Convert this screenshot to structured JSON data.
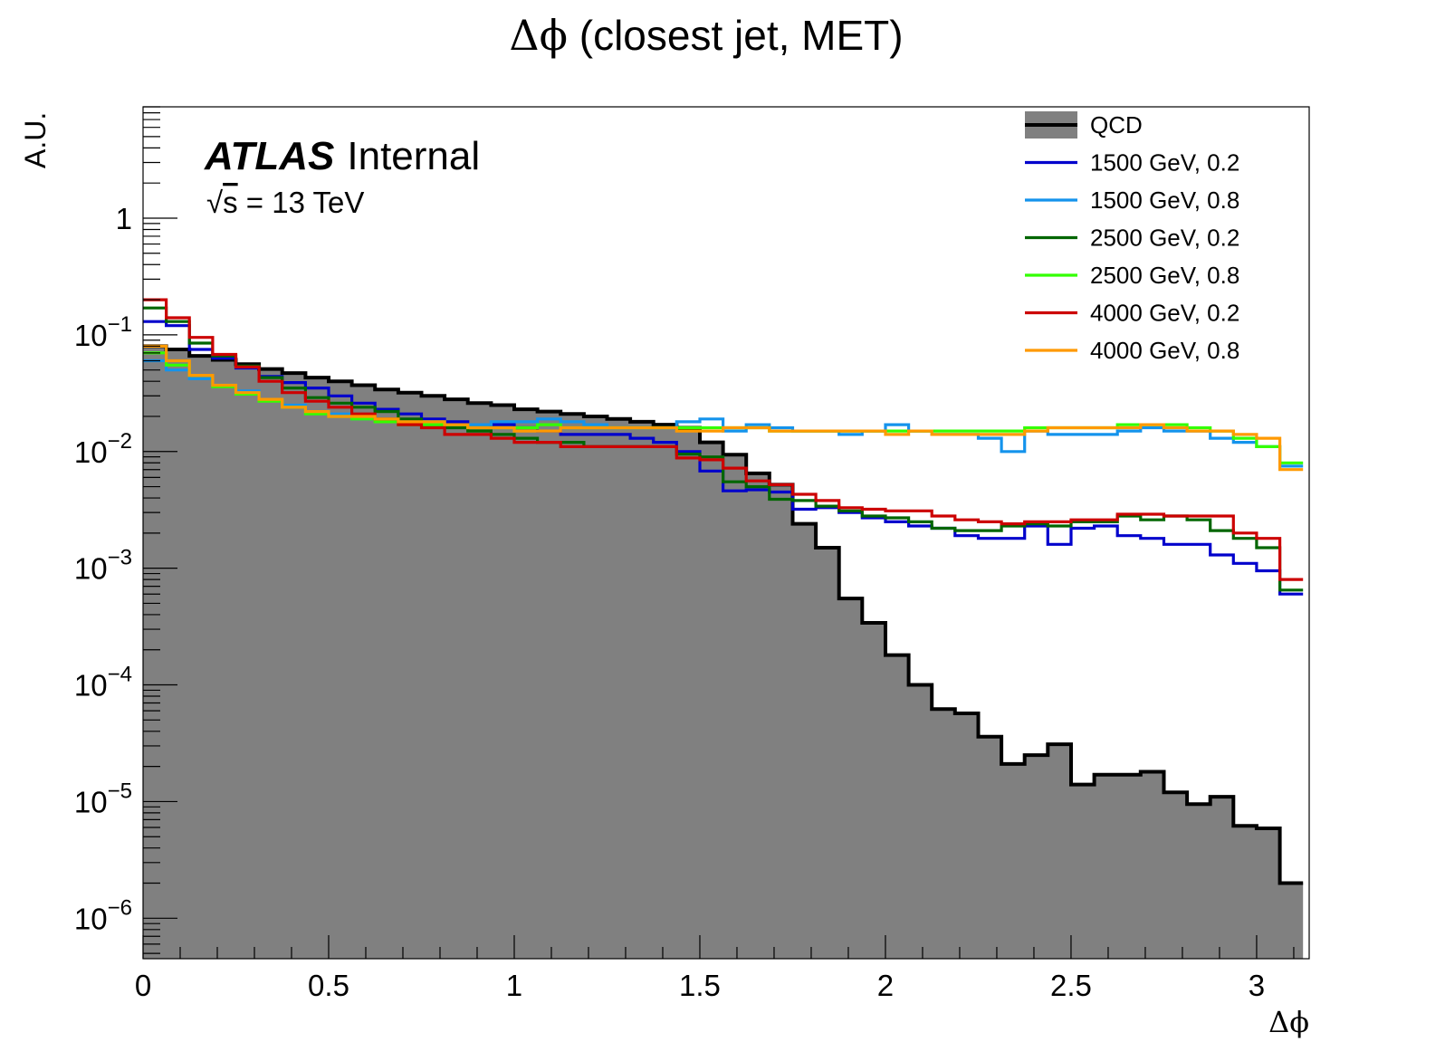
{
  "chart_data": {
    "type": "histogram",
    "title_parts": [
      "Δϕ",
      " (closest jet, MET)"
    ],
    "xlabel": "Δϕ",
    "ylabel": "A.U.",
    "xlim": [
      0,
      3.1416
    ],
    "ylim": [
      4.5e-07,
      9.0
    ],
    "yscale": "log",
    "grid": false,
    "legend_position": "top-right",
    "x_ticks": [
      {
        "v": 0,
        "t": "0"
      },
      {
        "v": 0.5,
        "t": "0.5"
      },
      {
        "v": 1,
        "t": "1"
      },
      {
        "v": 1.5,
        "t": "1.5"
      },
      {
        "v": 2,
        "t": "2"
      },
      {
        "v": 2.5,
        "t": "2.5"
      },
      {
        "v": 3,
        "t": "3"
      }
    ],
    "y_ticks": [
      {
        "v": 1,
        "b": "1",
        "e": ""
      },
      {
        "v": 0.1,
        "b": "10",
        "e": "−1"
      },
      {
        "v": 0.01,
        "b": "10",
        "e": "−2"
      },
      {
        "v": 0.001,
        "b": "10",
        "e": "−3"
      },
      {
        "v": 0.0001,
        "b": "10",
        "e": "−4"
      },
      {
        "v": 1e-05,
        "b": "10",
        "e": "−5"
      },
      {
        "v": 1e-06,
        "b": "10",
        "e": "−6"
      }
    ],
    "annotations": {
      "experiment": "ATLAS",
      "status": "Internal",
      "energy_sqrt": "√",
      "energy_s": "s",
      "energy_value": " = 13 TeV"
    },
    "bin_width": 0.0625,
    "series": [
      {
        "name": "QCD",
        "color": "#000000",
        "fill": "#808080",
        "filled": true,
        "values": [
          0.08,
          0.075,
          0.066,
          0.061,
          0.056,
          0.051,
          0.047,
          0.043,
          0.04,
          0.037,
          0.034,
          0.032,
          0.03,
          0.028,
          0.026,
          0.025,
          0.023,
          0.022,
          0.021,
          0.02,
          0.019,
          0.018,
          0.017,
          0.016,
          0.012,
          0.0094,
          0.0065,
          0.0052,
          0.0024,
          0.0015,
          0.00055,
          0.00034,
          0.00018,
          0.0001,
          6.2e-05,
          5.7e-05,
          3.6e-05,
          2.1e-05,
          2.5e-05,
          3.1e-05,
          1.4e-05,
          1.7e-05,
          1.7e-05,
          1.8e-05,
          1.2e-05,
          9.5e-06,
          1.1e-05,
          6.2e-06,
          5.9e-06,
          2e-06
        ]
      },
      {
        "name": "1500 GeV, 0.2",
        "color": "#0000cc",
        "filled": false,
        "values": [
          0.13,
          0.12,
          0.075,
          0.063,
          0.052,
          0.044,
          0.039,
          0.035,
          0.03,
          0.026,
          0.023,
          0.021,
          0.019,
          0.018,
          0.016,
          0.017,
          0.016,
          0.015,
          0.014,
          0.014,
          0.014,
          0.013,
          0.012,
          0.01,
          0.0068,
          0.0046,
          0.0047,
          0.0045,
          0.0032,
          0.0033,
          0.003,
          0.0027,
          0.0025,
          0.0023,
          0.0022,
          0.0019,
          0.0018,
          0.0018,
          0.0023,
          0.0016,
          0.0022,
          0.0023,
          0.0019,
          0.0018,
          0.0016,
          0.0016,
          0.0013,
          0.0011,
          0.00095,
          0.0006
        ]
      },
      {
        "name": "1500 GeV, 0.8",
        "color": "#1493ec",
        "filled": false,
        "values": [
          0.06,
          0.05,
          0.042,
          0.037,
          0.033,
          0.028,
          0.025,
          0.022,
          0.021,
          0.019,
          0.019,
          0.018,
          0.018,
          0.017,
          0.017,
          0.018,
          0.018,
          0.019,
          0.018,
          0.017,
          0.016,
          0.016,
          0.016,
          0.018,
          0.019,
          0.015,
          0.017,
          0.016,
          0.015,
          0.015,
          0.014,
          0.015,
          0.017,
          0.015,
          0.014,
          0.014,
          0.013,
          0.01,
          0.015,
          0.014,
          0.014,
          0.014,
          0.015,
          0.016,
          0.015,
          0.015,
          0.013,
          0.012,
          0.011,
          0.0075
        ]
      },
      {
        "name": "2500 GeV, 0.2",
        "color": "#006600",
        "filled": false,
        "values": [
          0.17,
          0.13,
          0.085,
          0.066,
          0.054,
          0.043,
          0.035,
          0.029,
          0.026,
          0.024,
          0.022,
          0.019,
          0.017,
          0.016,
          0.015,
          0.014,
          0.013,
          0.012,
          0.012,
          0.011,
          0.011,
          0.011,
          0.011,
          0.0095,
          0.009,
          0.0055,
          0.005,
          0.0039,
          0.0038,
          0.0034,
          0.0031,
          0.0028,
          0.0027,
          0.0025,
          0.0022,
          0.0021,
          0.0021,
          0.0023,
          0.0024,
          0.0023,
          0.0025,
          0.0025,
          0.0028,
          0.0026,
          0.0028,
          0.0026,
          0.0021,
          0.0018,
          0.0015,
          0.00065
        ]
      },
      {
        "name": "2500 GeV, 0.8",
        "color": "#33ff00",
        "filled": false,
        "values": [
          0.07,
          0.055,
          0.045,
          0.036,
          0.031,
          0.027,
          0.024,
          0.021,
          0.02,
          0.019,
          0.018,
          0.017,
          0.017,
          0.017,
          0.016,
          0.016,
          0.016,
          0.017,
          0.016,
          0.016,
          0.016,
          0.016,
          0.016,
          0.016,
          0.016,
          0.016,
          0.016,
          0.015,
          0.015,
          0.015,
          0.015,
          0.015,
          0.015,
          0.015,
          0.015,
          0.015,
          0.015,
          0.015,
          0.016,
          0.016,
          0.016,
          0.016,
          0.017,
          0.017,
          0.017,
          0.016,
          0.015,
          0.013,
          0.011,
          0.008
        ]
      },
      {
        "name": "4000 GeV, 0.2",
        "color": "#cc0000",
        "filled": false,
        "values": [
          0.2,
          0.14,
          0.095,
          0.068,
          0.053,
          0.04,
          0.032,
          0.027,
          0.024,
          0.021,
          0.019,
          0.017,
          0.016,
          0.014,
          0.014,
          0.013,
          0.012,
          0.012,
          0.011,
          0.011,
          0.011,
          0.011,
          0.011,
          0.0088,
          0.0085,
          0.0072,
          0.0056,
          0.0052,
          0.0043,
          0.0038,
          0.0033,
          0.0032,
          0.0031,
          0.0031,
          0.0028,
          0.0026,
          0.0025,
          0.0024,
          0.0025,
          0.0025,
          0.0026,
          0.0026,
          0.0029,
          0.0029,
          0.0028,
          0.0028,
          0.0028,
          0.002,
          0.0018,
          0.0008
        ]
      },
      {
        "name": "4000 GeV, 0.8",
        "color": "#ff9900",
        "filled": false,
        "values": [
          0.08,
          0.06,
          0.045,
          0.037,
          0.032,
          0.028,
          0.024,
          0.022,
          0.02,
          0.02,
          0.019,
          0.018,
          0.018,
          0.017,
          0.016,
          0.016,
          0.015,
          0.015,
          0.016,
          0.016,
          0.016,
          0.016,
          0.016,
          0.015,
          0.015,
          0.016,
          0.016,
          0.015,
          0.015,
          0.015,
          0.015,
          0.015,
          0.014,
          0.015,
          0.014,
          0.014,
          0.014,
          0.014,
          0.015,
          0.016,
          0.016,
          0.016,
          0.016,
          0.017,
          0.016,
          0.015,
          0.015,
          0.014,
          0.013,
          0.007
        ]
      }
    ]
  }
}
